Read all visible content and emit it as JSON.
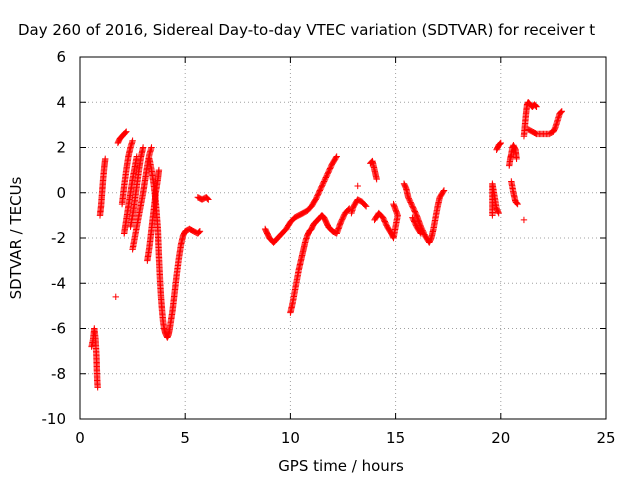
{
  "chart_data": {
    "type": "scatter",
    "title": "Day 260 of 2016, Sidereal Day-to-day VTEC variation (SDTVAR) for receiver t",
    "xlabel": "GPS time / hours",
    "ylabel": "SDTVAR / TECUs",
    "xlim": [
      0,
      25
    ],
    "ylim": [
      -10,
      6
    ],
    "x_ticks": [
      "0",
      "5",
      "10",
      "15",
      "20",
      "25"
    ],
    "y_ticks": [
      "-10",
      "-8",
      "-6",
      "-4",
      "-2",
      "0",
      "2",
      "4",
      "6"
    ],
    "grid": true,
    "legend": "none",
    "marker": "+",
    "color": "#ff0000",
    "tracks": [
      [
        [
          0.55,
          -6.8
        ],
        [
          0.62,
          -6.5
        ],
        [
          0.68,
          -6.0
        ],
        [
          0.74,
          -6.5
        ],
        [
          0.78,
          -7.2
        ],
        [
          0.8,
          -7.8
        ],
        [
          0.82,
          -8.3
        ],
        [
          0.84,
          -8.6
        ]
      ],
      [
        [
          0.95,
          -1.0
        ],
        [
          1.0,
          -0.6
        ],
        [
          1.05,
          0.0
        ],
        [
          1.1,
          0.6
        ],
        [
          1.15,
          1.1
        ],
        [
          1.2,
          1.5
        ]
      ],
      [
        [
          1.7,
          -4.6
        ]
      ],
      [
        [
          1.8,
          2.2
        ],
        [
          1.9,
          2.4
        ],
        [
          2.0,
          2.5
        ],
        [
          2.1,
          2.6
        ],
        [
          2.2,
          2.7
        ]
      ],
      [
        [
          2.0,
          -0.5
        ],
        [
          2.1,
          0.3
        ],
        [
          2.2,
          1.0
        ],
        [
          2.3,
          1.6
        ],
        [
          2.4,
          2.0
        ],
        [
          2.5,
          2.3
        ]
      ],
      [
        [
          2.1,
          -1.8
        ],
        [
          2.2,
          -1.2
        ],
        [
          2.3,
          -0.6
        ],
        [
          2.4,
          0.0
        ],
        [
          2.5,
          0.6
        ],
        [
          2.6,
          1.1
        ],
        [
          2.7,
          1.6
        ]
      ],
      [
        [
          2.4,
          -1.5
        ],
        [
          2.5,
          -1.0
        ],
        [
          2.6,
          -0.4
        ],
        [
          2.7,
          0.3
        ],
        [
          2.8,
          1.0
        ],
        [
          2.9,
          1.6
        ],
        [
          3.0,
          2.0
        ]
      ],
      [
        [
          2.5,
          -2.5
        ],
        [
          2.6,
          -2.0
        ],
        [
          2.7,
          -1.5
        ],
        [
          2.8,
          -1.0
        ],
        [
          2.9,
          -0.5
        ],
        [
          3.0,
          0.0
        ],
        [
          3.1,
          0.6
        ],
        [
          3.2,
          1.2
        ],
        [
          3.3,
          1.7
        ],
        [
          3.4,
          2.0
        ]
      ],
      [
        [
          3.2,
          -3.0
        ],
        [
          3.3,
          -2.4
        ],
        [
          3.4,
          -1.6
        ],
        [
          3.5,
          -0.8
        ],
        [
          3.6,
          0.0
        ],
        [
          3.7,
          0.6
        ],
        [
          3.75,
          1.0
        ]
      ],
      [
        [
          3.3,
          1.5
        ],
        [
          3.4,
          1.0
        ],
        [
          3.5,
          0.4
        ],
        [
          3.6,
          -0.4
        ],
        [
          3.7,
          -1.6
        ],
        [
          3.75,
          -2.8
        ],
        [
          3.8,
          -3.8
        ],
        [
          3.85,
          -4.6
        ],
        [
          3.9,
          -5.2
        ],
        [
          3.95,
          -5.7
        ],
        [
          4.0,
          -6.0
        ],
        [
          4.05,
          -6.2
        ],
        [
          4.1,
          -6.3
        ],
        [
          4.15,
          -6.4
        ],
        [
          4.2,
          -6.3
        ],
        [
          4.25,
          -6.1
        ],
        [
          4.3,
          -5.8
        ],
        [
          4.4,
          -5.2
        ],
        [
          4.5,
          -4.4
        ],
        [
          4.6,
          -3.6
        ],
        [
          4.7,
          -2.9
        ],
        [
          4.8,
          -2.3
        ],
        [
          4.9,
          -1.9
        ],
        [
          5.0,
          -1.7
        ],
        [
          5.2,
          -1.6
        ],
        [
          5.4,
          -1.7
        ],
        [
          5.6,
          -1.8
        ],
        [
          5.7,
          -1.7
        ]
      ],
      [
        [
          5.6,
          -0.2
        ],
        [
          5.8,
          -0.3
        ],
        [
          6.0,
          -0.2
        ],
        [
          6.1,
          -0.3
        ]
      ],
      [
        [
          8.8,
          -1.6
        ],
        [
          8.9,
          -1.8
        ],
        [
          9.0,
          -2.0
        ],
        [
          9.1,
          -2.1
        ],
        [
          9.2,
          -2.2
        ],
        [
          9.3,
          -2.1
        ],
        [
          9.4,
          -2.0
        ],
        [
          9.6,
          -1.8
        ],
        [
          9.8,
          -1.6
        ],
        [
          10.0,
          -1.3
        ],
        [
          10.2,
          -1.1
        ],
        [
          10.4,
          -1.0
        ],
        [
          10.6,
          -0.9
        ],
        [
          10.8,
          -0.8
        ],
        [
          11.0,
          -0.6
        ],
        [
          11.2,
          -0.3
        ],
        [
          11.4,
          0.1
        ],
        [
          11.6,
          0.5
        ],
        [
          11.8,
          0.9
        ],
        [
          12.0,
          1.3
        ],
        [
          12.2,
          1.6
        ]
      ],
      [
        [
          10.0,
          -5.3
        ],
        [
          10.1,
          -4.9
        ],
        [
          10.2,
          -4.4
        ],
        [
          10.3,
          -3.9
        ],
        [
          10.4,
          -3.4
        ],
        [
          10.5,
          -3.0
        ],
        [
          10.6,
          -2.6
        ],
        [
          10.7,
          -2.2
        ],
        [
          10.8,
          -1.9
        ],
        [
          10.9,
          -1.7
        ],
        [
          11.0,
          -1.6
        ],
        [
          11.1,
          -1.4
        ],
        [
          11.2,
          -1.3
        ],
        [
          11.3,
          -1.2
        ],
        [
          11.4,
          -1.1
        ],
        [
          11.5,
          -1.0
        ],
        [
          11.6,
          -1.1
        ],
        [
          11.7,
          -1.3
        ],
        [
          11.8,
          -1.5
        ],
        [
          11.9,
          -1.6
        ],
        [
          12.0,
          -1.7
        ],
        [
          12.2,
          -1.8
        ],
        [
          12.4,
          -1.3
        ],
        [
          12.6,
          -0.9
        ],
        [
          12.8,
          -0.7
        ]
      ],
      [
        [
          12.9,
          -0.9
        ],
        [
          13.0,
          -0.6
        ],
        [
          13.2,
          -0.3
        ],
        [
          13.4,
          -0.4
        ],
        [
          13.6,
          -0.6
        ]
      ],
      [
        [
          13.2,
          0.3
        ]
      ],
      [
        [
          13.8,
          1.3
        ],
        [
          13.9,
          1.4
        ],
        [
          14.0,
          1.0
        ],
        [
          14.1,
          0.6
        ]
      ],
      [
        [
          14.0,
          -1.2
        ],
        [
          14.2,
          -0.9
        ],
        [
          14.4,
          -1.1
        ],
        [
          14.6,
          -1.5
        ],
        [
          14.8,
          -1.8
        ],
        [
          14.9,
          -2.0
        ],
        [
          15.0,
          -1.5
        ],
        [
          15.1,
          -1.0
        ],
        [
          14.9,
          -0.5
        ]
      ],
      [
        [
          15.4,
          0.4
        ],
        [
          15.5,
          0.2
        ],
        [
          15.6,
          -0.2
        ],
        [
          15.8,
          -0.6
        ],
        [
          16.0,
          -1.0
        ],
        [
          16.2,
          -1.5
        ],
        [
          16.4,
          -1.9
        ],
        [
          16.6,
          -2.2
        ],
        [
          16.7,
          -2.0
        ],
        [
          16.8,
          -1.6
        ],
        [
          16.9,
          -1.1
        ],
        [
          17.0,
          -0.6
        ],
        [
          17.1,
          -0.2
        ],
        [
          17.3,
          0.1
        ]
      ],
      [
        [
          15.8,
          -1.1
        ],
        [
          16.0,
          -1.5
        ],
        [
          16.2,
          -1.8
        ]
      ],
      [
        [
          19.6,
          -1.0
        ],
        [
          19.6,
          0.4
        ],
        [
          19.8,
          -0.7
        ],
        [
          19.9,
          -0.9
        ]
      ],
      [
        [
          19.8,
          1.9
        ],
        [
          19.9,
          2.1
        ],
        [
          20.0,
          2.2
        ]
      ],
      [
        [
          20.4,
          1.2
        ],
        [
          20.45,
          1.5
        ],
        [
          20.5,
          1.7
        ],
        [
          20.55,
          2.0
        ],
        [
          20.6,
          2.1
        ],
        [
          20.7,
          1.9
        ],
        [
          20.75,
          1.5
        ]
      ],
      [
        [
          20.5,
          0.5
        ],
        [
          20.6,
          0.0
        ],
        [
          20.7,
          -0.4
        ],
        [
          20.8,
          -0.5
        ]
      ],
      [
        [
          21.1,
          -1.2
        ]
      ],
      [
        [
          21.1,
          2.5
        ],
        [
          21.15,
          3.0
        ],
        [
          21.2,
          3.5
        ],
        [
          21.25,
          3.9
        ],
        [
          21.3,
          4.0
        ],
        [
          21.4,
          3.9
        ],
        [
          21.5,
          3.8
        ],
        [
          21.6,
          3.9
        ],
        [
          21.7,
          3.8
        ]
      ],
      [
        [
          21.3,
          2.8
        ],
        [
          21.5,
          2.7
        ],
        [
          21.7,
          2.6
        ],
        [
          21.9,
          2.6
        ],
        [
          22.1,
          2.6
        ],
        [
          22.3,
          2.6
        ],
        [
          22.5,
          2.7
        ],
        [
          22.6,
          2.9
        ],
        [
          22.7,
          3.2
        ],
        [
          22.8,
          3.5
        ],
        [
          22.9,
          3.6
        ]
      ]
    ]
  }
}
